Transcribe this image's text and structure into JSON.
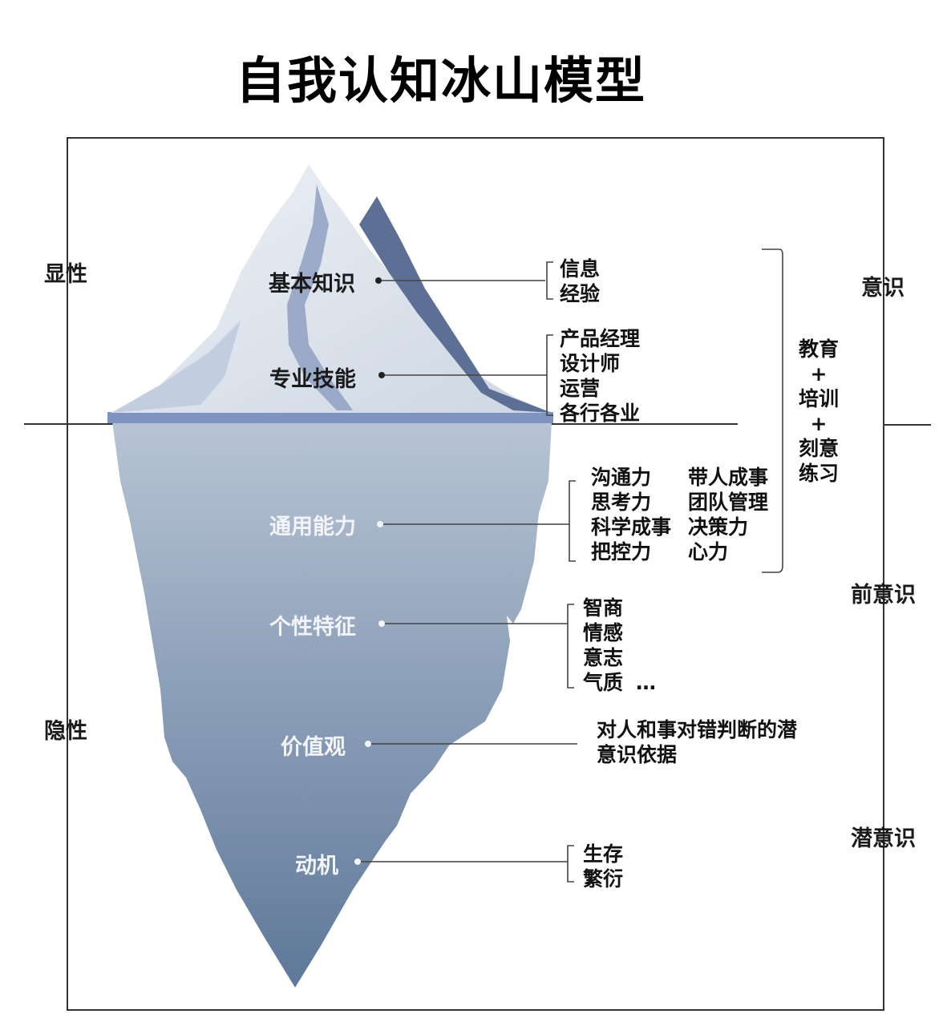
{
  "title": "自我认知冰山模型",
  "left_labels": {
    "explicit": "显性",
    "implicit": "隐性"
  },
  "right_labels": {
    "conscious": "意识",
    "preconscious": "前意识",
    "subconscious": "潜意识"
  },
  "training": {
    "line1": "教育",
    "plus1": "+",
    "line2": "培训",
    "plus2": "+",
    "line3": "刻意",
    "line4": "练习"
  },
  "layers": {
    "basic_knowledge": {
      "label": "基本知识",
      "items": [
        "信息",
        "经验"
      ]
    },
    "professional_skills": {
      "label": "专业技能",
      "items": [
        "产品经理",
        "设计师",
        "运营",
        "各行各业"
      ]
    },
    "general_ability": {
      "label": "通用能力",
      "col1": [
        "沟通力",
        "思考力",
        "科学成事",
        "把控力"
      ],
      "col2": [
        "带人成事",
        "团队管理",
        "决策力",
        "心力"
      ]
    },
    "personality": {
      "label": "个性特征",
      "items": [
        "智商",
        "情感",
        "意志",
        "气质"
      ],
      "ellipsis": "…"
    },
    "values": {
      "label": "价值观",
      "desc_line1": "对人和事对错判断的潜",
      "desc_line2": "意识依据"
    },
    "motivation": {
      "label": "动机",
      "items": [
        "生存",
        "繁衍"
      ]
    }
  },
  "colors": {
    "iceberg_under": "#6f87a6",
    "iceberg_top": "#dfe5ee",
    "iceberg_shadow": "#5d6f95",
    "waterline": "#7f93c0"
  }
}
